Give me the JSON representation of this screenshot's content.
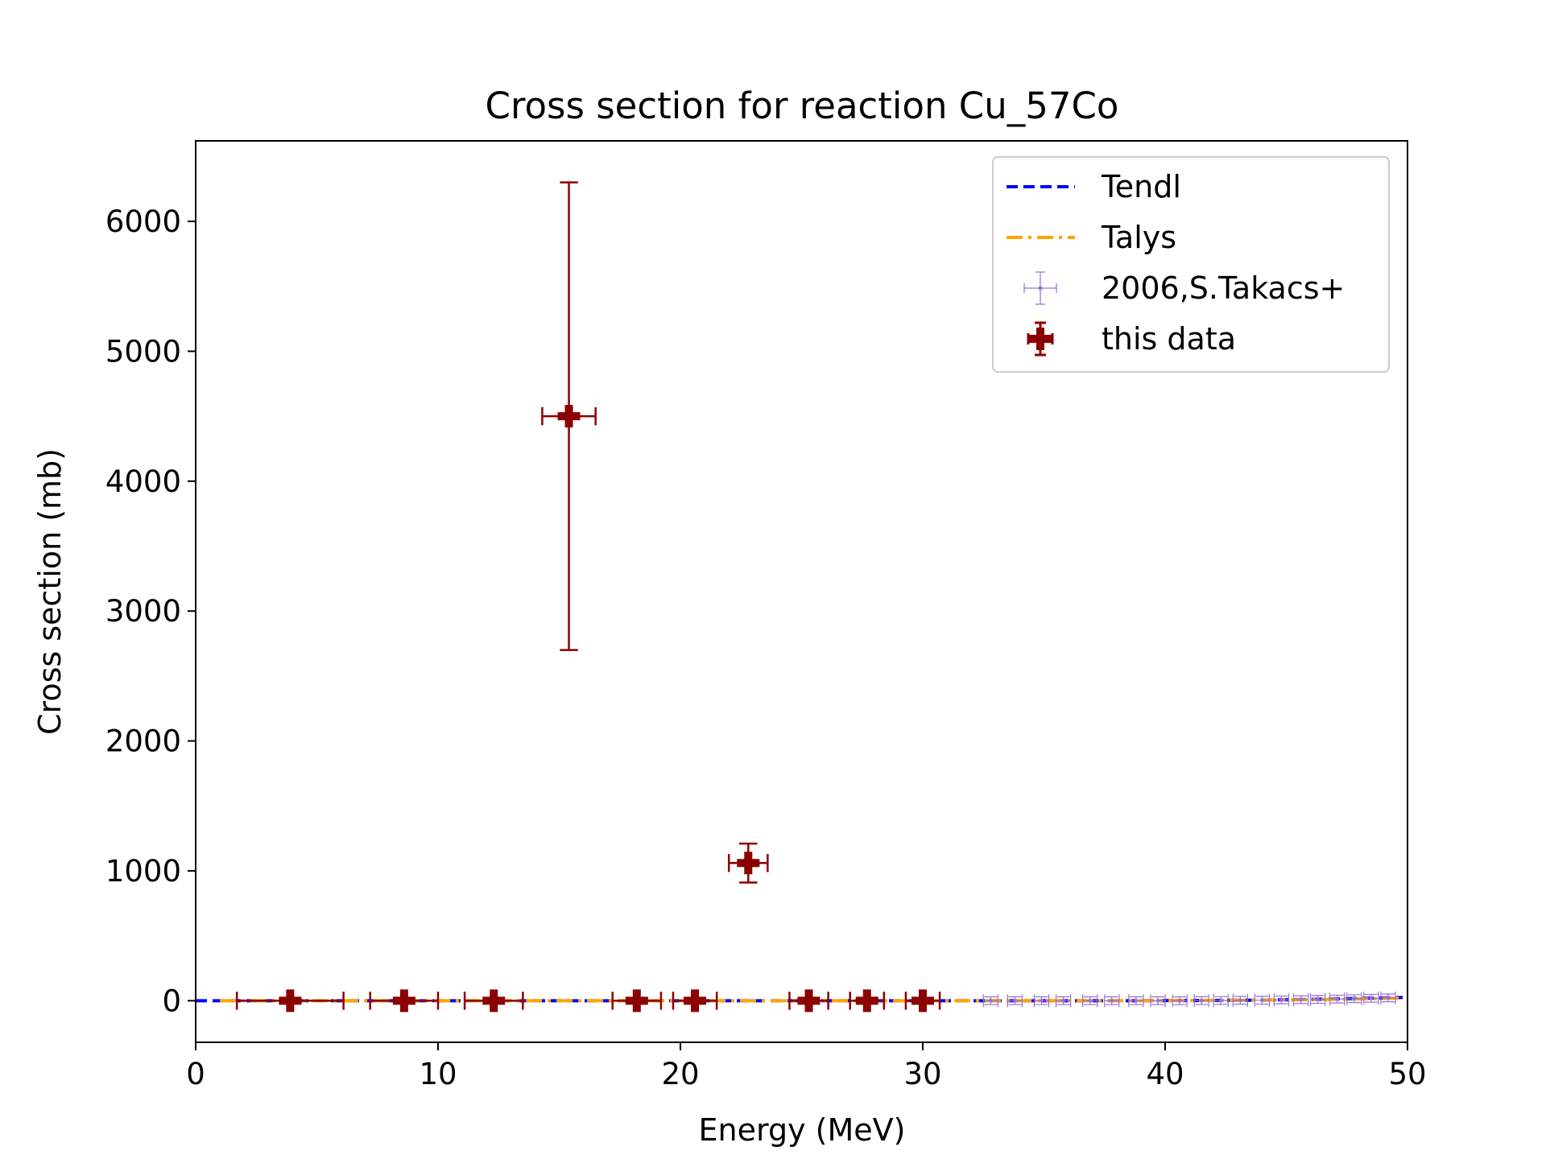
{
  "chart_data": {
    "type": "scatter",
    "title": "Cross section for reaction Cu_57Co",
    "xlabel": "Energy (MeV)",
    "ylabel": "Cross section (mb)",
    "xlim": [
      0,
      50
    ],
    "ylim": [
      -320,
      6620
    ],
    "xticks": [
      0,
      10,
      20,
      30,
      40,
      50
    ],
    "yticks": [
      0,
      1000,
      2000,
      3000,
      4000,
      5000,
      6000
    ],
    "grid": false,
    "legend_position": "top-right",
    "legend": [
      "Tendl",
      "Talys",
      "2006,S.Takacs+",
      "this data"
    ],
    "series": [
      {
        "name": "Tendl",
        "kind": "line",
        "style": "dashed",
        "color": "#0000ff",
        "x": [
          0,
          5,
          10,
          15,
          20,
          25,
          30,
          32,
          34,
          36,
          38,
          40,
          42,
          44,
          46,
          48,
          49.8
        ],
        "y": [
          0,
          0,
          0,
          0,
          0,
          0,
          0,
          0,
          0,
          0,
          0,
          1,
          2,
          5,
          10,
          18,
          25
        ]
      },
      {
        "name": "Talys",
        "kind": "line",
        "style": "dashdot",
        "color": "#ffa500",
        "x": [
          1,
          5,
          10,
          15,
          20,
          25,
          30,
          32,
          34,
          36,
          38,
          40,
          42,
          44,
          46,
          48,
          49.8
        ],
        "y": [
          0,
          0,
          0,
          0,
          0,
          0,
          0,
          0,
          0,
          0,
          0,
          1,
          2,
          4,
          8,
          14,
          20
        ]
      },
      {
        "name": "2006,S.Takacs+",
        "kind": "errorbar",
        "color": "#9370db",
        "points": [
          {
            "x": 32.8,
            "y": 0,
            "xerr": 0.3,
            "yerr": 30
          },
          {
            "x": 33.8,
            "y": 0,
            "xerr": 0.3,
            "yerr": 30
          },
          {
            "x": 34.9,
            "y": 0,
            "xerr": 0.3,
            "yerr": 30
          },
          {
            "x": 35.8,
            "y": 0,
            "xerr": 0.3,
            "yerr": 30
          },
          {
            "x": 36.9,
            "y": 0,
            "xerr": 0.3,
            "yerr": 30
          },
          {
            "x": 37.8,
            "y": 0,
            "xerr": 0.3,
            "yerr": 30
          },
          {
            "x": 38.8,
            "y": 0,
            "xerr": 0.3,
            "yerr": 30
          },
          {
            "x": 39.7,
            "y": 0,
            "xerr": 0.3,
            "yerr": 30
          },
          {
            "x": 40.6,
            "y": 0,
            "xerr": 0.3,
            "yerr": 30
          },
          {
            "x": 41.5,
            "y": 1,
            "xerr": 0.3,
            "yerr": 30
          },
          {
            "x": 42.3,
            "y": 2,
            "xerr": 0.3,
            "yerr": 30
          },
          {
            "x": 43.1,
            "y": 3,
            "xerr": 0.3,
            "yerr": 30
          },
          {
            "x": 44.0,
            "y": 4,
            "xerr": 0.3,
            "yerr": 30
          },
          {
            "x": 44.8,
            "y": 6,
            "xerr": 0.3,
            "yerr": 30
          },
          {
            "x": 45.6,
            "y": 8,
            "xerr": 0.3,
            "yerr": 30
          },
          {
            "x": 46.3,
            "y": 10,
            "xerr": 0.3,
            "yerr": 30
          },
          {
            "x": 47.1,
            "y": 13,
            "xerr": 0.3,
            "yerr": 30
          },
          {
            "x": 47.8,
            "y": 16,
            "xerr": 0.3,
            "yerr": 30
          },
          {
            "x": 48.5,
            "y": 19,
            "xerr": 0.3,
            "yerr": 30
          },
          {
            "x": 49.2,
            "y": 22,
            "xerr": 0.3,
            "yerr": 30
          }
        ]
      },
      {
        "name": "this data",
        "kind": "errorbar",
        "color": "#8b0000",
        "points": [
          {
            "x": 3.9,
            "y": 0,
            "xerr": 2.2,
            "yerr": 0
          },
          {
            "x": 8.6,
            "y": 0,
            "xerr": 1.4,
            "yerr": 0
          },
          {
            "x": 12.3,
            "y": 0,
            "xerr": 1.2,
            "yerr": 0
          },
          {
            "x": 15.4,
            "y": 4500,
            "xerr": 1.1,
            "yerr": 1800
          },
          {
            "x": 18.2,
            "y": 0,
            "xerr": 1.0,
            "yerr": 0
          },
          {
            "x": 20.6,
            "y": 0,
            "xerr": 0.9,
            "yerr": 0
          },
          {
            "x": 22.8,
            "y": 1060,
            "xerr": 0.8,
            "yerr": 150
          },
          {
            "x": 25.3,
            "y": 0,
            "xerr": 0.8,
            "yerr": 0
          },
          {
            "x": 27.7,
            "y": 0,
            "xerr": 0.7,
            "yerr": 0
          },
          {
            "x": 30.0,
            "y": 0,
            "xerr": 0.7,
            "yerr": 0
          }
        ]
      }
    ]
  }
}
